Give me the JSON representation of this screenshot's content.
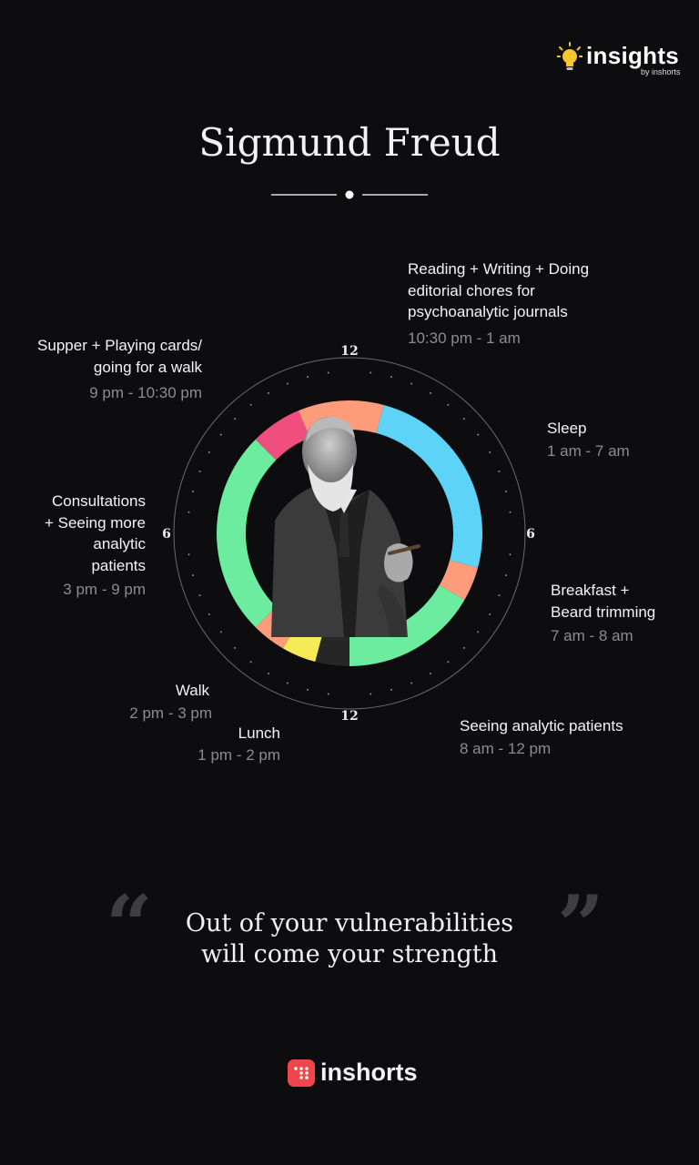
{
  "brand_top": {
    "name": "insights",
    "byline": "by inshorts"
  },
  "title": "Sigmund Freud",
  "clock": {
    "top_12": "12",
    "bottom_12": "12",
    "left_6": "6",
    "right_6": "6"
  },
  "activities": [
    {
      "id": "reading",
      "label_lines": [
        "Reading + Writing + Doing",
        "editorial chores for",
        "psychoanalytic journals"
      ],
      "time": "10:30 pm - 1 am",
      "color": "#fc9c7b"
    },
    {
      "id": "sleep",
      "label_lines": [
        "Sleep"
      ],
      "time": "1 am - 7 am",
      "color": "#5cd3f7"
    },
    {
      "id": "breakfast",
      "label_lines": [
        "Breakfast +",
        "Beard trimming"
      ],
      "time": "7 am - 8 am",
      "color": "#fc9c7b"
    },
    {
      "id": "analytic",
      "label_lines": [
        "Seeing analytic patients"
      ],
      "time": "8 am - 12 pm",
      "color": "#6bec9e"
    },
    {
      "id": "lunch",
      "label_lines": [
        "Lunch"
      ],
      "time": "1 pm - 2 pm",
      "color": "#262626"
    },
    {
      "id": "walk",
      "label_lines": [
        "Walk"
      ],
      "time": "2 pm - 3 pm",
      "color": "#f5eb56"
    },
    {
      "id": "consultations",
      "label_lines": [
        "Consultations",
        "+ Seeing more",
        "analytic",
        "patients"
      ],
      "time": "3 pm - 9 pm",
      "color": "#6bec9e"
    },
    {
      "id": "supper",
      "label_lines": [
        "Supper + Playing cards/",
        "going for a walk"
      ],
      "time": "9 pm - 10:30 pm",
      "color": "#f04e7f"
    }
  ],
  "ring_extra": {
    "color": "#fc9c7b"
  },
  "quote": {
    "line1": "Out of your vulnerabilities",
    "line2": "will come your strength",
    "open_mark": "“",
    "close_mark": "”"
  },
  "brand_bottom": {
    "name": "inshorts"
  }
}
